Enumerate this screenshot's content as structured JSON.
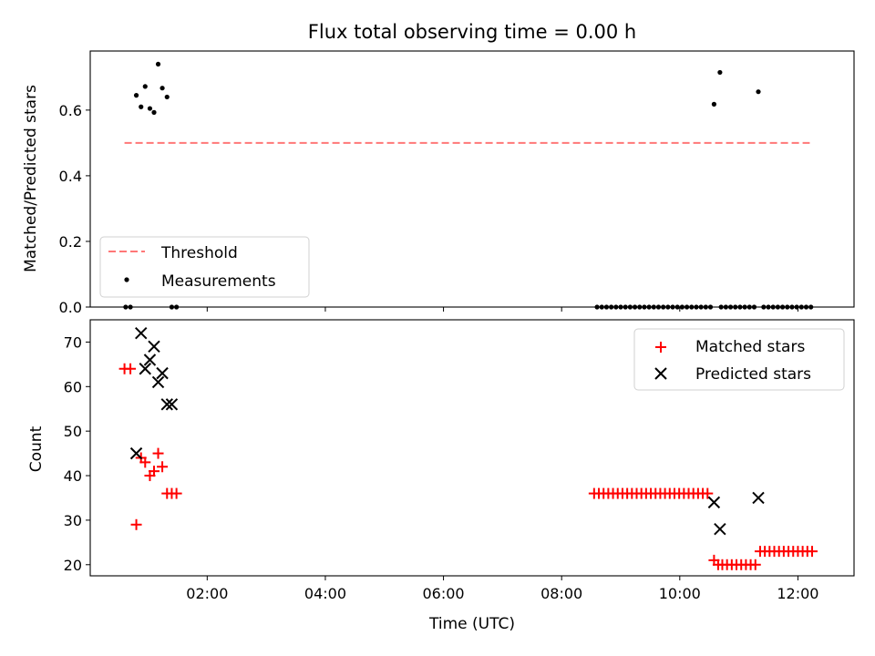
{
  "chart_data": [
    {
      "type": "scatter",
      "title": "Flux total observing time = 0.00 h",
      "xlabel": "",
      "ylabel": "Matched/Predicted stars",
      "xlim": [
        0.02,
        12.95
      ],
      "ylim": [
        0.0,
        0.78
      ],
      "yticks": [
        0.0,
        0.2,
        0.4,
        0.6
      ],
      "ytick_labels": [
        "0.0",
        "0.2",
        "0.4",
        "0.6"
      ],
      "xticks": [
        2,
        4,
        6,
        8,
        10,
        12
      ],
      "show_xtick_labels": false,
      "grid": false,
      "legend": {
        "placement": "lower-left",
        "entries": [
          "Threshold",
          "Measurements"
        ]
      },
      "threshold": {
        "name": "Threshold",
        "value": 0.5,
        "x_range": [
          0.6,
          12.2
        ],
        "color": "#ff7777",
        "style": "dashed"
      },
      "series": [
        {
          "name": "Measurements",
          "color": "#000000",
          "marker": "dot",
          "x": [
            0.8,
            0.88,
            0.95,
            1.03,
            1.1,
            1.17,
            1.24,
            1.32,
            1.4,
            0.62,
            0.7,
            1.48,
            10.58,
            10.68,
            11.33,
            8.6,
            8.68,
            8.76,
            8.84,
            8.92,
            9.0,
            9.08,
            9.16,
            9.24,
            9.32,
            9.4,
            9.48,
            9.56,
            9.64,
            9.72,
            9.8,
            9.88,
            9.96,
            10.04,
            10.12,
            10.2,
            10.28,
            10.36,
            10.44,
            10.52,
            10.7,
            10.78,
            10.86,
            10.94,
            11.02,
            11.1,
            11.18,
            11.26,
            11.42,
            11.5,
            11.58,
            11.66,
            11.74,
            11.82,
            11.9,
            11.98,
            12.06,
            12.14,
            12.22
          ],
          "y": [
            0.645,
            0.61,
            0.672,
            0.605,
            0.593,
            0.74,
            0.667,
            0.64,
            0.0,
            0.0,
            0.0,
            0.0,
            0.618,
            0.715,
            0.656,
            0.0,
            0.0,
            0.0,
            0.0,
            0.0,
            0.0,
            0.0,
            0.0,
            0.0,
            0.0,
            0.0,
            0.0,
            0.0,
            0.0,
            0.0,
            0.0,
            0.0,
            0.0,
            0.0,
            0.0,
            0.0,
            0.0,
            0.0,
            0.0,
            0.0,
            0.0,
            0.0,
            0.0,
            0.0,
            0.0,
            0.0,
            0.0,
            0.0,
            0.0,
            0.0,
            0.0,
            0.0,
            0.0,
            0.0,
            0.0,
            0.0,
            0.0,
            0.0,
            0.0
          ]
        }
      ]
    },
    {
      "type": "scatter",
      "title": "",
      "xlabel": "Time (UTC)",
      "ylabel": "Count",
      "xlim": [
        0.02,
        12.95
      ],
      "ylim": [
        17.5,
        75.0
      ],
      "yticks": [
        20,
        30,
        40,
        50,
        60,
        70
      ],
      "ytick_labels": [
        "20",
        "30",
        "40",
        "50",
        "60",
        "70"
      ],
      "xticks": [
        2,
        4,
        6,
        8,
        10,
        12
      ],
      "xtick_labels": [
        "02:00",
        "04:00",
        "06:00",
        "08:00",
        "10:00",
        "12:00"
      ],
      "grid": false,
      "legend": {
        "placement": "top-right",
        "entries": [
          "Matched stars",
          "Predicted stars"
        ]
      },
      "series": [
        {
          "name": "Matched stars",
          "color": "#ff0000",
          "marker": "plus",
          "x": [
            0.6,
            0.7,
            0.8,
            0.88,
            0.95,
            1.03,
            1.1,
            1.17,
            1.24,
            1.32,
            1.4,
            1.48,
            8.55,
            8.63,
            8.71,
            8.79,
            8.87,
            8.95,
            9.03,
            9.11,
            9.19,
            9.27,
            9.35,
            9.43,
            9.51,
            9.59,
            9.67,
            9.75,
            9.83,
            9.91,
            9.99,
            10.07,
            10.15,
            10.23,
            10.31,
            10.39,
            10.47,
            10.58,
            10.65,
            10.72,
            10.8,
            10.88,
            10.96,
            11.04,
            11.12,
            11.2,
            11.28,
            11.36,
            11.44,
            11.52,
            11.6,
            11.68,
            11.76,
            11.84,
            11.92,
            12.0,
            12.08,
            12.16,
            12.24
          ],
          "y": [
            64,
            64,
            29,
            44,
            43,
            40,
            41,
            45,
            42,
            36,
            36,
            36,
            36,
            36,
            36,
            36,
            36,
            36,
            36,
            36,
            36,
            36,
            36,
            36,
            36,
            36,
            36,
            36,
            36,
            36,
            36,
            36,
            36,
            36,
            36,
            36,
            36,
            21,
            20,
            20,
            20,
            20,
            20,
            20,
            20,
            20,
            20,
            23,
            23,
            23,
            23,
            23,
            23,
            23,
            23,
            23,
            23,
            23,
            23
          ]
        },
        {
          "name": "Predicted stars",
          "color": "#000000",
          "marker": "x",
          "x": [
            0.8,
            0.88,
            0.95,
            1.03,
            1.1,
            1.17,
            1.24,
            1.32,
            1.4,
            10.58,
            10.68,
            11.33
          ],
          "y": [
            45,
            72,
            64,
            66,
            69,
            61,
            63,
            56,
            56,
            34,
            28,
            35
          ]
        }
      ]
    }
  ]
}
